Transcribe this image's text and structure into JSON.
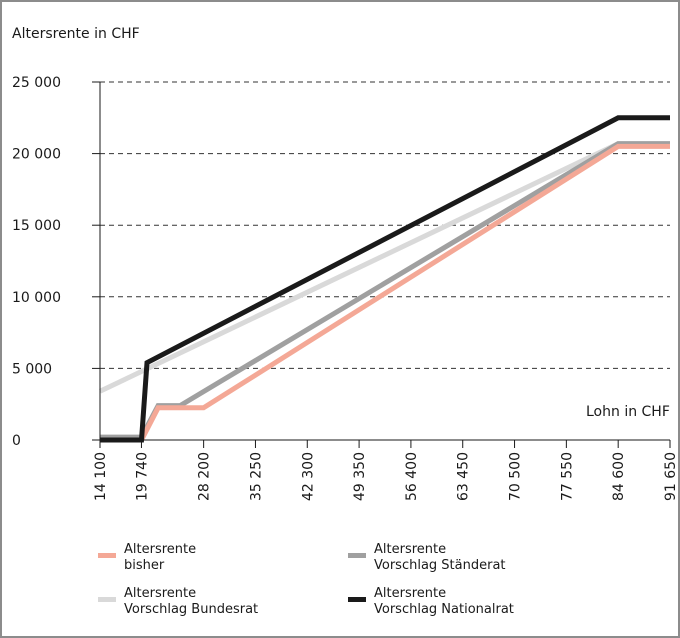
{
  "chart_data": {
    "type": "line",
    "ylabel": "Altersrente in CHF",
    "xlabel": "Lohn in CHF",
    "x_ticks": [
      14100,
      19740,
      28200,
      35250,
      42300,
      49350,
      56400,
      63450,
      70500,
      77550,
      84600,
      91650
    ],
    "x_tick_labels": [
      "14 100",
      "19 740",
      "28 200",
      "35 250",
      "42 300",
      "49 350",
      "56 400",
      "63 450",
      "70 500",
      "77 550",
      "84 600",
      "91 650"
    ],
    "y_ticks": [
      0,
      5000,
      10000,
      15000,
      20000,
      25000
    ],
    "y_tick_labels": [
      "0",
      "5 000",
      "10 000",
      "15 000",
      "20 000",
      "25 000"
    ],
    "xlim": [
      14100,
      91650
    ],
    "ylim": [
      0,
      25000
    ],
    "grid": "horizontal dashed",
    "legend_position": "bottom",
    "series": [
      {
        "name": "Altersrente bisher",
        "name_lines": [
          "Altersrente",
          "bisher"
        ],
        "color": "#f4a896",
        "x": [
          14100,
          19740,
          22000,
          28200,
          84600,
          91650
        ],
        "y": [
          0,
          0,
          2250,
          2250,
          20500,
          20500
        ]
      },
      {
        "name": "Altersrente Vorschlag Ständerat",
        "name_lines": [
          "Altersrente",
          "Vorschlag Ständerat"
        ],
        "color": "#a0a0a0",
        "x": [
          14100,
          19740,
          22000,
          25000,
          84600,
          91650
        ],
        "y": [
          200,
          200,
          2400,
          2400,
          20700,
          20700
        ]
      },
      {
        "name": "Altersrente Vorschlag Bundesrat",
        "name_lines": [
          "Altersrente",
          "Vorschlag Bundesrat"
        ],
        "color": "#d9d9d9",
        "x": [
          14100,
          84600
        ],
        "y": [
          3400,
          20700
        ]
      },
      {
        "name": "Altersrente Vorschlag Nationalrat",
        "name_lines": [
          "Altersrente",
          "Vorschlag Nationalrat"
        ],
        "color": "#1a1a1a",
        "x": [
          14100,
          19740,
          20500,
          84600,
          91650
        ],
        "y": [
          0,
          0,
          5400,
          22500,
          22500
        ]
      }
    ]
  }
}
